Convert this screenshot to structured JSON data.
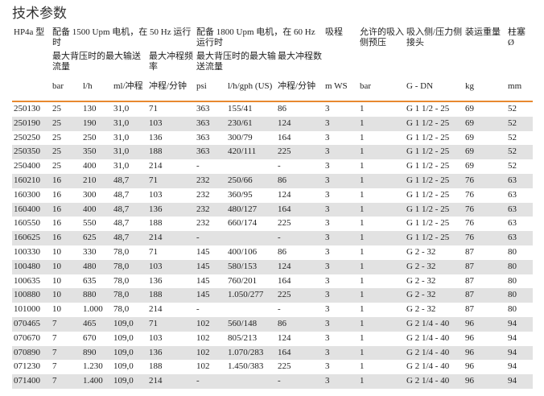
{
  "title": "技术参数",
  "header": {
    "row1": {
      "model": "HP4a 型",
      "motor50": "配备 1500 Upm 电机，在 50 Hz 运行时",
      "motor60": "配备 1800 Upm 电机，在 60 Hz 运行时",
      "suction_lift": "吸程",
      "suction_pressure": "允许的吸入侧预压",
      "connection": "吸入侧/压力侧接头",
      "weight": "装运重量",
      "plunger": "柱塞 Ø"
    },
    "row2": {
      "flow50": "最大背压时的最大输送流量",
      "freq50": "最大冲程频率",
      "flow60": "最大背压时的最大输送流量",
      "freq60": "最大冲程数"
    },
    "units": [
      "bar",
      "l/h",
      "ml/冲程",
      "冲程/分钟",
      "psi",
      "l/h/gph (US)",
      "冲程/分钟",
      "m WS",
      "bar",
      "G - DN",
      "kg",
      "mm"
    ]
  },
  "rows": [
    [
      "250130",
      "25",
      "130",
      "31,0",
      "71",
      "363",
      "155/41",
      "86",
      "3",
      "1",
      "G 1 1/2 - 25",
      "69",
      "52"
    ],
    [
      "250190",
      "25",
      "190",
      "31,0",
      "103",
      "363",
      "230/61",
      "124",
      "3",
      "1",
      "G 1 1/2 - 25",
      "69",
      "52"
    ],
    [
      "250250",
      "25",
      "250",
      "31,0",
      "136",
      "363",
      "300/79",
      "164",
      "3",
      "1",
      "G 1 1/2 - 25",
      "69",
      "52"
    ],
    [
      "250350",
      "25",
      "350",
      "31,0",
      "188",
      "363",
      "420/111",
      "225",
      "3",
      "1",
      "G 1 1/2 - 25",
      "69",
      "52"
    ],
    [
      "250400",
      "25",
      "400",
      "31,0",
      "214",
      "-",
      "",
      "-",
      "3",
      "1",
      "G 1 1/2 - 25",
      "69",
      "52"
    ],
    [
      "160210",
      "16",
      "210",
      "48,7",
      "71",
      "232",
      "250/66",
      "86",
      "3",
      "1",
      "G 1 1/2 - 25",
      "76",
      "63"
    ],
    [
      "160300",
      "16",
      "300",
      "48,7",
      "103",
      "232",
      "360/95",
      "124",
      "3",
      "1",
      "G 1 1/2 - 25",
      "76",
      "63"
    ],
    [
      "160400",
      "16",
      "400",
      "48,7",
      "136",
      "232",
      "480/127",
      "164",
      "3",
      "1",
      "G 1 1/2 - 25",
      "76",
      "63"
    ],
    [
      "160550",
      "16",
      "550",
      "48,7",
      "188",
      "232",
      "660/174",
      "225",
      "3",
      "1",
      "G 1 1/2 - 25",
      "76",
      "63"
    ],
    [
      "160625",
      "16",
      "625",
      "48,7",
      "214",
      "-",
      "",
      "-",
      "3",
      "1",
      "G 1 1/2 - 25",
      "76",
      "63"
    ],
    [
      "100330",
      "10",
      "330",
      "78,0",
      "71",
      "145",
      "400/106",
      "86",
      "3",
      "1",
      "G 2 - 32",
      "87",
      "80"
    ],
    [
      "100480",
      "10",
      "480",
      "78,0",
      "103",
      "145",
      "580/153",
      "124",
      "3",
      "1",
      "G 2 - 32",
      "87",
      "80"
    ],
    [
      "100635",
      "10",
      "635",
      "78,0",
      "136",
      "145",
      "760/201",
      "164",
      "3",
      "1",
      "G 2 - 32",
      "87",
      "80"
    ],
    [
      "100880",
      "10",
      "880",
      "78,0",
      "188",
      "145",
      "1.050/277",
      "225",
      "3",
      "1",
      "G 2 - 32",
      "87",
      "80"
    ],
    [
      "101000",
      "10",
      "1.000",
      "78,0",
      "214",
      "-",
      "",
      "-",
      "3",
      "1",
      "G 2 - 32",
      "87",
      "80"
    ],
    [
      "070465",
      "7",
      "465",
      "109,0",
      "71",
      "102",
      "560/148",
      "86",
      "3",
      "1",
      "G 2 1/4 - 40",
      "96",
      "94"
    ],
    [
      "070670",
      "7",
      "670",
      "109,0",
      "103",
      "102",
      "805/213",
      "124",
      "3",
      "1",
      "G 2 1/4 - 40",
      "96",
      "94"
    ],
    [
      "070890",
      "7",
      "890",
      "109,0",
      "136",
      "102",
      "1.070/283",
      "164",
      "3",
      "1",
      "G 2 1/4 - 40",
      "96",
      "94"
    ],
    [
      "071230",
      "7",
      "1.230",
      "109,0",
      "188",
      "102",
      "1.450/383",
      "225",
      "3",
      "1",
      "G 2 1/4 - 40",
      "96",
      "94"
    ],
    [
      "071400",
      "7",
      "1.400",
      "109,0",
      "214",
      "-",
      "",
      "-",
      "3",
      "1",
      "G 2 1/4 - 40",
      "96",
      "94"
    ]
  ],
  "colors": {
    "header_rule": "#e8892f",
    "stripe": "#e2e2e2"
  }
}
